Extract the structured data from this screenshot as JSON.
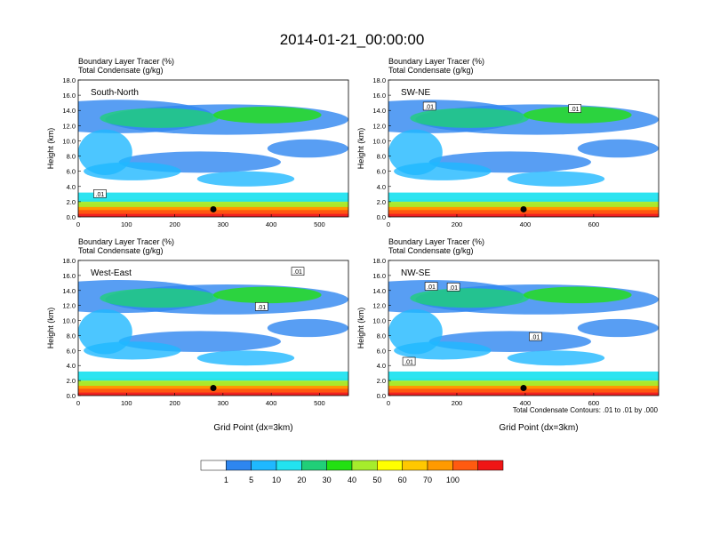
{
  "title": "2014-01-21_00:00:00",
  "cbar_note": "Total Condensate Contours: .01 to .01 by .000",
  "xlabel": "Grid Point (dx=3km)",
  "colorbar": {
    "labels": [
      "1",
      "5",
      "10",
      "20",
      "30",
      "40",
      "50",
      "60",
      "70",
      "100"
    ],
    "colors": [
      "#ffffff",
      "#2e86f0",
      "#1fb8ff",
      "#22e3f0",
      "#20cf78",
      "#22e012",
      "#a6ec2c",
      "#ffff00",
      "#ffc800",
      "#ff9a00",
      "#ff5a10",
      "#ef1515"
    ]
  },
  "chart_data": [
    {
      "type": "heatmap",
      "panel_label": "South-North",
      "subtitle_left": "Boundary Layer Tracer",
      "subtitle_unit1": "(%)",
      "subtitle_left2": "Total Condensate",
      "subtitle_unit2": "(g/kg)",
      "ylabel": "Height (km)",
      "xlabel": "",
      "xlim": [
        0,
        560
      ],
      "ylim": [
        0,
        18
      ],
      "xticks": [
        "0",
        "100",
        "200",
        "300",
        "400",
        "500"
      ],
      "yticks": [
        "0.0",
        "2.0",
        "4.0",
        "6.0",
        "8.0",
        "10.0",
        "12.0",
        "14.0",
        "16.0",
        "18.0"
      ],
      "marker": {
        "x": 280,
        "y": 1.0
      },
      "contour_labels": [
        {
          "text": ".01",
          "x": 45,
          "y": 3.0
        }
      ]
    },
    {
      "type": "heatmap",
      "panel_label": "SW-NE",
      "subtitle_left": "Boundary Layer Tracer",
      "subtitle_unit1": "(%)",
      "subtitle_left2": "Total Condensate",
      "subtitle_unit2": "(g/kg)",
      "ylabel": "Height (km)",
      "xlabel": "",
      "xlim": [
        0,
        790
      ],
      "ylim": [
        0,
        18
      ],
      "xticks": [
        "0",
        "200",
        "400",
        "600"
      ],
      "yticks": [
        "0.0",
        "2.0",
        "4.0",
        "6.0",
        "8.0",
        "10.0",
        "12.0",
        "14.0",
        "16.0",
        "18.0"
      ],
      "marker": {
        "x": 395,
        "y": 1.0
      },
      "contour_labels": [
        {
          "text": ".01",
          "x": 120,
          "y": 14.5
        },
        {
          "text": ".01",
          "x": 545,
          "y": 14.2
        }
      ]
    },
    {
      "type": "heatmap",
      "panel_label": "West-East",
      "subtitle_left": "Boundary Layer Tracer",
      "subtitle_unit1": "(%)",
      "subtitle_left2": "Total Condensate",
      "subtitle_unit2": "(g/kg)",
      "ylabel": "Height (km)",
      "xlabel": "Grid Point (dx=3km)",
      "xlim": [
        0,
        560
      ],
      "ylim": [
        0,
        18
      ],
      "xticks": [
        "0",
        "100",
        "200",
        "300",
        "400",
        "500"
      ],
      "yticks": [
        "0.0",
        "2.0",
        "4.0",
        "6.0",
        "8.0",
        "10.0",
        "12.0",
        "14.0",
        "16.0",
        "18.0"
      ],
      "marker": {
        "x": 280,
        "y": 1.0
      },
      "contour_labels": [
        {
          "text": ".01",
          "x": 380,
          "y": 11.8
        },
        {
          "text": ".01",
          "x": 455,
          "y": 16.5
        }
      ]
    },
    {
      "type": "heatmap",
      "panel_label": "NW-SE",
      "subtitle_left": "Boundary Layer Tracer",
      "subtitle_unit1": "(%)",
      "subtitle_left2": "Total Condensate",
      "subtitle_unit2": "(g/kg)",
      "ylabel": "Height (km)",
      "xlabel": "Grid Point (dx=3km)",
      "xlim": [
        0,
        790
      ],
      "ylim": [
        0,
        18
      ],
      "xticks": [
        "0",
        "200",
        "400",
        "600"
      ],
      "yticks": [
        "0.0",
        "2.0",
        "4.0",
        "6.0",
        "8.0",
        "10.0",
        "12.0",
        "14.0",
        "16.0",
        "18.0"
      ],
      "marker": {
        "x": 395,
        "y": 1.0
      },
      "contour_labels": [
        {
          "text": ".01",
          "x": 60,
          "y": 4.5
        },
        {
          "text": ".01",
          "x": 125,
          "y": 14.5
        },
        {
          "text": ".01",
          "x": 190,
          "y": 14.4
        },
        {
          "text": ".01",
          "x": 430,
          "y": 7.8
        }
      ]
    }
  ]
}
